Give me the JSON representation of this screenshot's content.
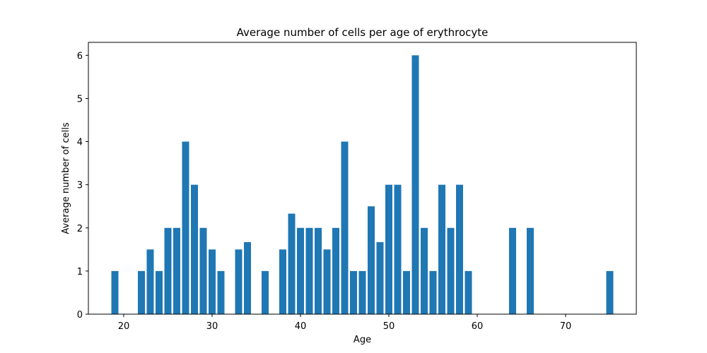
{
  "chart_data": {
    "type": "bar",
    "title": "Average number of cells per age of erythrocyte",
    "xlabel": "Age",
    "ylabel": "Average number of cells",
    "xlim": [
      16,
      78
    ],
    "ylim": [
      0,
      6.3
    ],
    "xticks": [
      20,
      30,
      40,
      50,
      60,
      70
    ],
    "yticks": [
      0,
      1,
      2,
      3,
      4,
      5,
      6
    ],
    "bar_color": "#1f77b4",
    "grid": false,
    "x": [
      19,
      22,
      23,
      24,
      25,
      26,
      27,
      28,
      29,
      30,
      31,
      33,
      34,
      36,
      38,
      39,
      40,
      41,
      42,
      43,
      44,
      45,
      46,
      47,
      48,
      49,
      50,
      51,
      52,
      53,
      54,
      55,
      56,
      57,
      58,
      59,
      64,
      66,
      75
    ],
    "values": [
      1,
      1,
      1.5,
      1,
      2,
      2,
      4,
      3,
      2,
      1.5,
      1,
      1.5,
      1.67,
      1,
      1.5,
      2.33,
      2,
      2,
      2,
      1.5,
      2,
      4,
      1,
      1,
      2.5,
      1.67,
      3,
      3,
      1,
      6,
      2,
      1,
      3,
      2,
      3,
      1,
      2,
      2,
      1
    ]
  }
}
